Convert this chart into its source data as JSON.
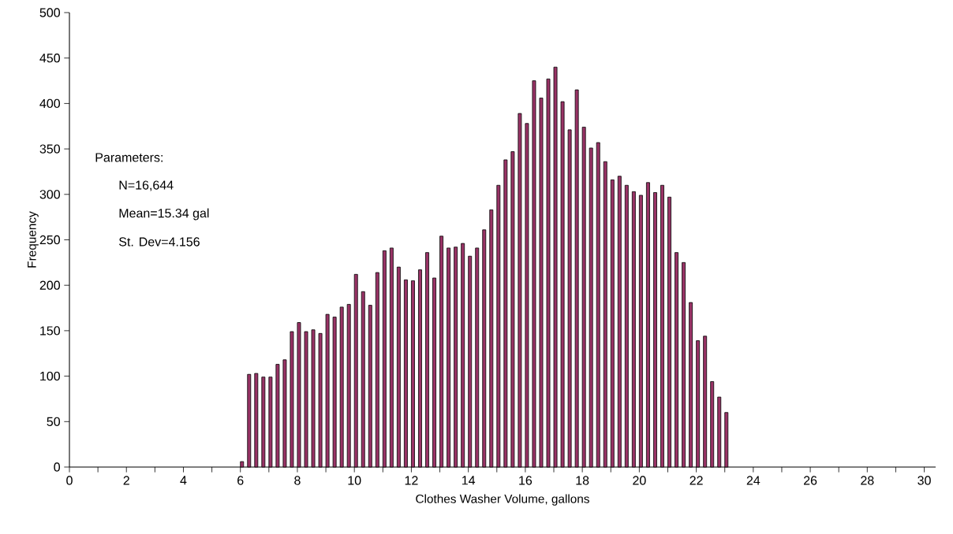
{
  "chart_data": {
    "type": "histogram",
    "xlabel": "Clothes Washer Volume, gallons",
    "ylabel": "Frequency",
    "annotations": [
      "Parameters:",
      "N=16,644",
      "Mean=15.34 gal",
      "St. Dev=4.156"
    ],
    "bins": [
      6.0,
      6.25,
      6.5,
      6.75,
      7.0,
      7.25,
      7.5,
      7.75,
      8.0,
      8.25,
      8.5,
      8.75,
      9.0,
      9.25,
      9.5,
      9.75,
      10.0,
      10.25,
      10.5,
      10.75,
      11.0,
      11.25,
      11.5,
      11.75,
      12.0,
      12.25,
      12.5,
      12.75,
      13.0,
      13.25,
      13.5,
      13.75,
      14.0,
      14.25,
      14.5,
      14.75,
      15.0,
      15.25,
      15.5,
      15.75,
      16.0,
      16.25,
      16.5,
      16.75,
      17.0,
      17.25,
      17.5,
      17.75,
      18.0,
      18.25,
      18.5,
      18.75,
      19.0,
      19.25,
      19.5,
      19.75,
      20.0,
      20.25,
      20.5,
      20.75,
      21.0,
      21.25,
      21.5,
      21.75,
      22.0,
      22.25,
      22.5,
      22.75,
      23.0,
      23.25
    ],
    "values": [
      6,
      102,
      103,
      99,
      99,
      113,
      118,
      149,
      159,
      149,
      151,
      147,
      168,
      165,
      176,
      179,
      212,
      193,
      178,
      214,
      238,
      241,
      220,
      206,
      205,
      217,
      236,
      208,
      254,
      241,
      242,
      246,
      232,
      241,
      261,
      283,
      310,
      338,
      347,
      389,
      378,
      425,
      406,
      427,
      440,
      402,
      371,
      415,
      374,
      351,
      357,
      336,
      316,
      320,
      310,
      303,
      299,
      313,
      302,
      310,
      297,
      236,
      225,
      181,
      139,
      144,
      94,
      77,
      60
    ],
    "color": "#993366",
    "xlim": [
      0,
      30.4
    ],
    "xticks": [
      0,
      {
        "value": 1,
        "label": null
      },
      2,
      {
        "value": 3,
        "label": null
      },
      4,
      {
        "value": 5,
        "label": null
      },
      6,
      {
        "value": 7,
        "label": null
      },
      8,
      {
        "value": 9,
        "label": null
      },
      10,
      {
        "value": 11,
        "label": null
      },
      12,
      {
        "value": 13,
        "label": null
      },
      14,
      {
        "value": 15,
        "label": null
      },
      16,
      {
        "value": 17,
        "label": null
      },
      18,
      {
        "value": 19,
        "label": null
      },
      20,
      {
        "value": 21,
        "label": null
      },
      22,
      {
        "value": 23,
        "label": null
      },
      24,
      {
        "value": 25,
        "label": null
      },
      26,
      {
        "value": 27,
        "label": null
      },
      28,
      {
        "value": 29,
        "label": null
      },
      30
    ],
    "ylim": [
      0,
      500
    ],
    "yticks": [
      0,
      50,
      100,
      150,
      200,
      250,
      300,
      350,
      400,
      450,
      500
    ]
  }
}
